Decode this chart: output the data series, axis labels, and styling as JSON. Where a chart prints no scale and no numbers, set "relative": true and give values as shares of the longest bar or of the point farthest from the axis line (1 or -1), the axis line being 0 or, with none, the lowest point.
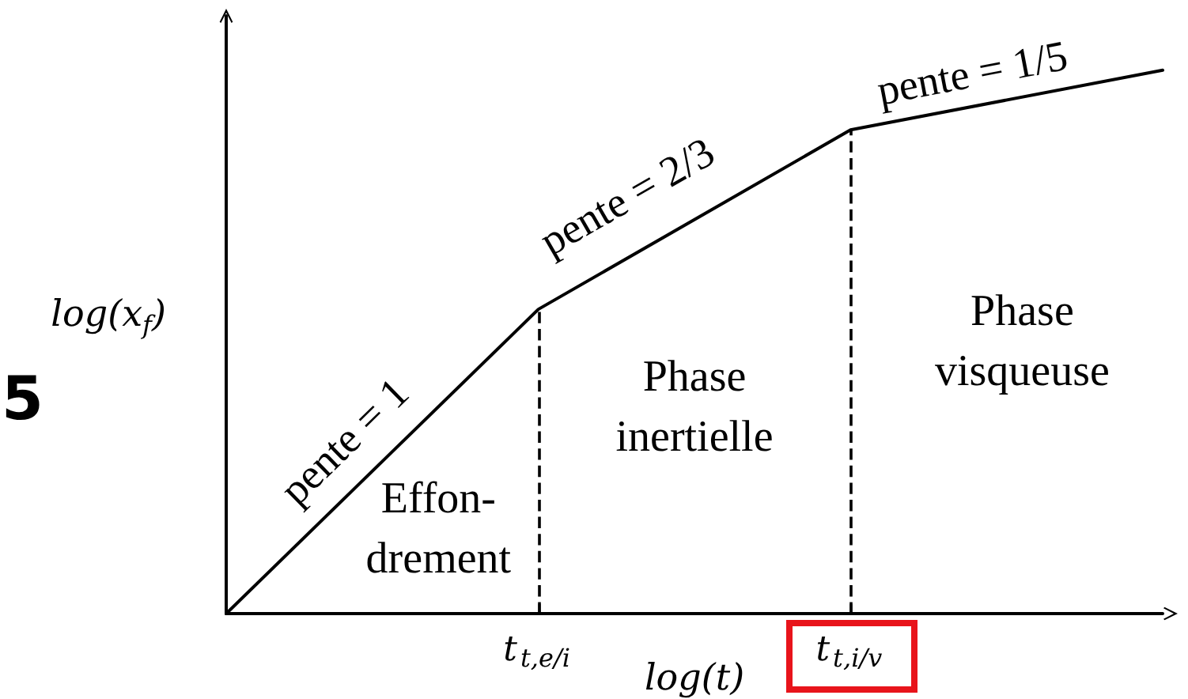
{
  "chart_data": {
    "type": "line",
    "relative": true,
    "xlabel": "log(t)",
    "ylabel": "log(x$_{f}$)",
    "categories": [
      null,
      "t$_{t,e/i}$",
      "t$_{t,i/v}$",
      null
    ],
    "series": [
      {
        "color": "#000000",
        "values": [
          0,
          0.56,
          0.89,
          1
        ]
      }
    ],
    "marker": "none",
    "line_style": "solid",
    "grid": false,
    "tick_labels": "x",
    "ref_lines": [
      {
        "axis": "x",
        "value": "t$_{t,e/i}$",
        "line_style": "dashed",
        "color": "#000000"
      },
      {
        "axis": "x",
        "value": "t$_{t,i/v}$",
        "line_style": "dashed",
        "color": "#000000"
      }
    ],
    "annotations": [
      "pente = 1",
      "pente = 2/3",
      "pente = 1/5",
      "Effon-\ndrement",
      "Phase\ninertielle",
      "Phase\nvisqueuse",
      "5"
    ]
  }
}
